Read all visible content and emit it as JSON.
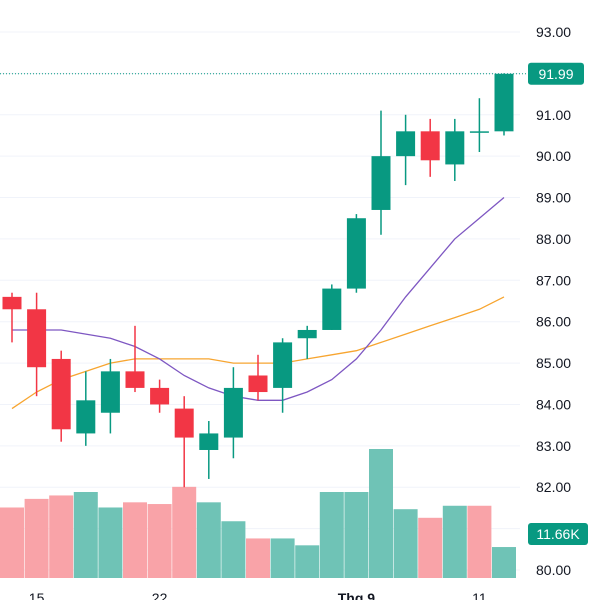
{
  "chart_data": {
    "type": "candlestick",
    "y_axis": {
      "range": [
        79.9,
        93.3
      ],
      "ticks": [
        "80.00",
        "82.00",
        "83.00",
        "84.00",
        "85.00",
        "86.00",
        "87.00",
        "88.00",
        "89.00",
        "90.00",
        "91.00",
        "93.00"
      ]
    },
    "x_axis": {
      "ticks": [
        {
          "index": 1,
          "label": "15",
          "bold": false
        },
        {
          "index": 6,
          "label": "22",
          "bold": false
        },
        {
          "index": 14,
          "label": "Thg 9",
          "bold": true
        },
        {
          "index": 19,
          "label": "11",
          "bold": false
        }
      ]
    },
    "last_price": {
      "value": 91.99,
      "label": "91.99"
    },
    "volume_label": "11.66K",
    "colors": {
      "up": "#089981",
      "down": "#F23645",
      "volume_up": "#6FC3B6",
      "volume_down": "#F9A3A8",
      "ma_short": "#7E57C2",
      "ma_long": "#F7A530",
      "price_line": "#089981"
    },
    "candles": [
      {
        "o": 86.6,
        "h": 86.7,
        "l": 85.5,
        "c": 86.3
      },
      {
        "o": 86.3,
        "h": 86.7,
        "l": 84.2,
        "c": 84.9
      },
      {
        "o": 85.1,
        "h": 85.3,
        "l": 83.1,
        "c": 83.4
      },
      {
        "o": 83.3,
        "h": 84.8,
        "l": 83.0,
        "c": 84.1
      },
      {
        "o": 83.8,
        "h": 85.1,
        "l": 83.3,
        "c": 84.8
      },
      {
        "o": 84.8,
        "h": 85.9,
        "l": 84.3,
        "c": 84.4
      },
      {
        "o": 84.4,
        "h": 84.6,
        "l": 83.8,
        "c": 84.0
      },
      {
        "o": 83.9,
        "h": 84.2,
        "l": 82.0,
        "c": 83.2
      },
      {
        "o": 82.9,
        "h": 83.6,
        "l": 82.2,
        "c": 83.3
      },
      {
        "o": 83.2,
        "h": 84.9,
        "l": 82.7,
        "c": 84.4
      },
      {
        "o": 84.7,
        "h": 85.2,
        "l": 84.1,
        "c": 84.3
      },
      {
        "o": 84.4,
        "h": 85.6,
        "l": 83.8,
        "c": 85.5
      },
      {
        "o": 85.6,
        "h": 85.9,
        "l": 85.1,
        "c": 85.8
      },
      {
        "o": 85.8,
        "h": 86.9,
        "l": 85.8,
        "c": 86.8
      },
      {
        "o": 86.8,
        "h": 88.6,
        "l": 86.7,
        "c": 88.5
      },
      {
        "o": 88.7,
        "h": 91.1,
        "l": 88.1,
        "c": 90.0
      },
      {
        "o": 90.0,
        "h": 91.0,
        "l": 89.3,
        "c": 90.6
      },
      {
        "o": 90.6,
        "h": 90.9,
        "l": 89.5,
        "c": 89.9
      },
      {
        "o": 89.8,
        "h": 90.9,
        "l": 89.4,
        "c": 90.6
      },
      {
        "o": 90.6,
        "h": 91.4,
        "l": 90.1,
        "c": 90.6
      },
      {
        "o": 90.6,
        "h": 92.0,
        "l": 90.5,
        "c": 91.99
      }
    ],
    "volume": [
      {
        "v": 4.1,
        "dir": "down"
      },
      {
        "v": 4.6,
        "dir": "down"
      },
      {
        "v": 4.8,
        "dir": "down"
      },
      {
        "v": 5.0,
        "dir": "up"
      },
      {
        "v": 4.1,
        "dir": "up"
      },
      {
        "v": 4.4,
        "dir": "down"
      },
      {
        "v": 4.3,
        "dir": "down"
      },
      {
        "v": 5.3,
        "dir": "down"
      },
      {
        "v": 4.4,
        "dir": "up"
      },
      {
        "v": 3.3,
        "dir": "up"
      },
      {
        "v": 2.3,
        "dir": "down"
      },
      {
        "v": 2.3,
        "dir": "up"
      },
      {
        "v": 1.9,
        "dir": "up"
      },
      {
        "v": 5.0,
        "dir": "up"
      },
      {
        "v": 5.0,
        "dir": "up"
      },
      {
        "v": 7.5,
        "dir": "up"
      },
      {
        "v": 4.0,
        "dir": "up"
      },
      {
        "v": 3.5,
        "dir": "down"
      },
      {
        "v": 4.2,
        "dir": "up"
      },
      {
        "v": 4.2,
        "dir": "down"
      },
      {
        "v": 1.8,
        "dir": "up"
      }
    ],
    "ma_short": [
      85.8,
      85.8,
      85.8,
      85.7,
      85.6,
      85.4,
      85.1,
      84.7,
      84.4,
      84.2,
      84.1,
      84.1,
      84.3,
      84.6,
      85.1,
      85.8,
      86.6,
      87.3,
      88.0,
      88.5,
      89.0
    ],
    "ma_long": [
      83.9,
      84.3,
      84.6,
      84.8,
      85.0,
      85.1,
      85.1,
      85.1,
      85.1,
      85.0,
      85.0,
      85.0,
      85.1,
      85.2,
      85.3,
      85.5,
      85.7,
      85.9,
      86.1,
      86.3,
      86.6
    ]
  }
}
